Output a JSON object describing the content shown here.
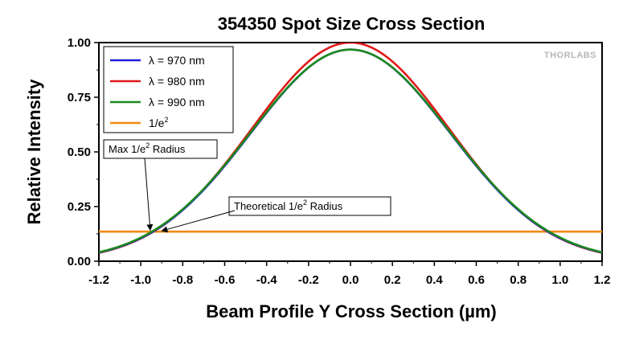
{
  "chart_data": {
    "type": "line",
    "title": "354350 Spot Size Cross Section",
    "xlabel": "Beam Profile Y Cross Section (µm)",
    "ylabel": "Relative Intensity",
    "xlim": [
      -1.2,
      1.2
    ],
    "ylim": [
      0,
      1.0
    ],
    "xticks": [
      -1.2,
      -1.0,
      -0.8,
      -0.6,
      -0.4,
      -0.2,
      0.0,
      0.2,
      0.4,
      0.6,
      0.8,
      1.0,
      1.2
    ],
    "xtick_labels": [
      "-1.2",
      "-1.0",
      "-0.8",
      "-0.6",
      "-0.4",
      "-0.2",
      "0.0",
      "0.2",
      "0.4",
      "0.6",
      "0.8",
      "1.0",
      "1.2"
    ],
    "yticks": [
      0.0,
      0.25,
      0.5,
      0.75,
      1.0
    ],
    "ytick_labels": [
      "0.00",
      "0.25",
      "0.50",
      "0.75",
      "1.00"
    ],
    "series": [
      {
        "name": "λ = 970 nm",
        "color": "#1f1fdc",
        "kind": "gaussian",
        "amplitude": 0.968,
        "center": 0.0,
        "radius_1e2": 0.95
      },
      {
        "name": "λ = 980 nm",
        "color": "#e01818",
        "kind": "gaussian",
        "amplitude": 1.0,
        "center": 0.0,
        "radius_1e2": 0.94
      },
      {
        "name": "λ = 990 nm",
        "color": "#1c8a1c",
        "kind": "gaussian",
        "amplitude": 0.968,
        "center": 0.0,
        "radius_1e2": 0.955
      },
      {
        "name": "1/e²",
        "color": "#f28a12",
        "kind": "constant",
        "value": 0.1353
      }
    ],
    "legend": {
      "placement": "top-left",
      "entries": [
        {
          "prefix": "λ = 970 nm",
          "sup": ""
        },
        {
          "prefix": "λ = 980 nm",
          "sup": ""
        },
        {
          "prefix": "λ = 990 nm",
          "sup": ""
        },
        {
          "prefix": "1/e",
          "sup": "2"
        }
      ]
    },
    "annotations": [
      {
        "text_prefix": "Max 1/e",
        "sup": "2",
        "text_suffix": " Radius",
        "target": {
          "x": -0.955,
          "y": 0.1353
        }
      },
      {
        "text_prefix": "Theoretical 1/e",
        "sup": "2",
        "text_suffix": " Radius",
        "target": {
          "x": -0.9,
          "y": 0.1353
        }
      }
    ],
    "watermark": "THORLABS"
  }
}
